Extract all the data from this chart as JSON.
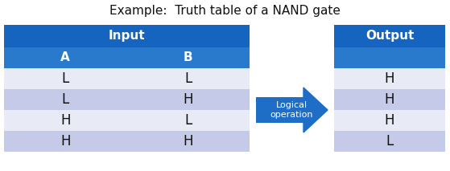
{
  "title": "Example:  Truth table of a NAND gate",
  "title_fontsize": 11,
  "bg_color": "#ffffff",
  "header_blue": "#1565C0",
  "header_blue2": "#2979CC",
  "cell_light": "#C5CAE9",
  "cell_lighter": "#E8EAF6",
  "arrow_color": "#1E6EC8",
  "arrow_label": "Logical\noperation",
  "input_header": "Input",
  "output_header": "Output",
  "col_headers": [
    "A",
    "B"
  ],
  "output_col": [
    "H",
    "H",
    "H",
    "L"
  ],
  "input_rows": [
    [
      "L",
      "L"
    ],
    [
      "L",
      "H"
    ],
    [
      "H",
      "L"
    ],
    [
      "H",
      "H"
    ]
  ],
  "text_white": "#ffffff",
  "text_dark": "#111111",
  "arrow_text_color": "#ffffff"
}
